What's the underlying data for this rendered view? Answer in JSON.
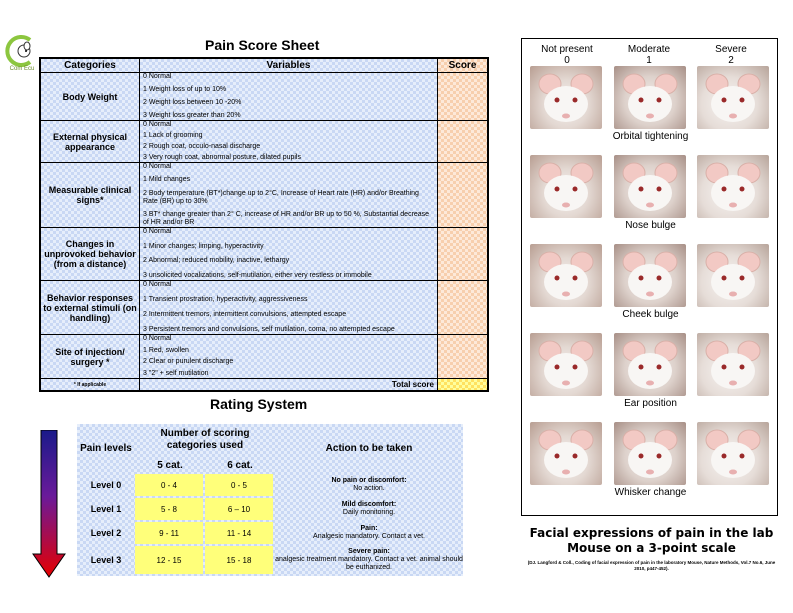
{
  "logo": {
    "text": "Com Ecu"
  },
  "pain_sheet": {
    "title": "Pain Score Sheet",
    "headers": {
      "categories": "Categories",
      "variables": "Variables",
      "score": "Score"
    },
    "rows": [
      {
        "category": "Body Weight",
        "variables": [
          "0   Normal",
          "1   Weight loss of up to 10%",
          "2   Weight loss between 10 -20%",
          "3   Weight loss greater than 20%"
        ]
      },
      {
        "category": "External physical appearance",
        "variables": [
          "0   Normal",
          "1   Lack of grooming",
          "2   Rough coat, occulo-nasal discharge",
          "3   Very rough coat, abnormal posture,  dilated pupils"
        ]
      },
      {
        "category": "Measurable clinical signs*",
        "variables": [
          "0   Normal",
          "1   Mild changes",
          "2    Body temperature (BT*)change up to  2°C, Increase of Heart rate (HR) and/or Breathing Rate (BR) up to 30%",
          "3   BT* change greater than 2° C, increase of HR and/or BR up to  50 %, Substantial decrease of  HR and/or BR"
        ]
      },
      {
        "category": "Changes in unprovoked behavior (from a distance)",
        "variables": [
          "0   Normal",
          "1   Minor changes; limping, hyperactivity",
          "2   Abnormal; reduced mobility, inactive, lethargy",
          "3  unsolicited vocalizations, self-mutilation, either very restless or immobile"
        ]
      },
      {
        "category": "Behavior responses to external stimuli (on handling)",
        "variables": [
          "0   Normal",
          "1   Transient prostration, hyperactivity, aggressiveness",
          "2   Intermittent tremors, intermittent convulsions, attempted escape",
          "3   Persistent tremors and convulsions, self mutilation, coma, no attempted escape"
        ]
      },
      {
        "category": "Site of injection/ surgery *",
        "variables": [
          "0   Normal",
          "1   Red, swollen",
          "2   Clear or purulent discharge",
          "3   \"2\" + self mutilation"
        ]
      }
    ],
    "footnote": "* If applicable",
    "total_label": "Total score"
  },
  "rating": {
    "title": "Rating System",
    "headers": {
      "pain_levels": "Pain levels",
      "num_categories": "Number of scoring categories used",
      "cat5": "5 cat.",
      "cat6": "6 cat.",
      "action": "Action to be taken"
    },
    "rows": [
      {
        "level": "Level 0",
        "cat5": "0 - 4",
        "cat6": "0 - 5",
        "action_title": "No pain or discomfort:",
        "action_text": "No action."
      },
      {
        "level": "Level 1",
        "cat5": "5 - 8",
        "cat6": "6 – 10",
        "action_title": "Mild discomfort:",
        "action_text": "Daily monitoring."
      },
      {
        "level": "Level 2",
        "cat5": "9 - 11",
        "cat6": "11 - 14",
        "action_title": "Pain:",
        "action_text": "Analgesic mandatory. Contact a vet."
      },
      {
        "level": "Level 3",
        "cat5": "12 - 15",
        "cat6": "15 - 18",
        "action_title": "Severe pain:",
        "action_text": "analgesic treatment mandatory. Contact a vet. animal should be euthanized."
      }
    ],
    "arrow_colors": [
      "#1a1a8a",
      "#6a1a9a",
      "#e60000"
    ]
  },
  "mouse_scale": {
    "columns": [
      {
        "label": "Not present",
        "score": "0"
      },
      {
        "label": "Moderate",
        "score": "1"
      },
      {
        "label": "Severe",
        "score": "2"
      }
    ],
    "features": [
      "Orbital tightening",
      "Nose bulge",
      "Cheek bulge",
      "Ear position",
      "Whisker change"
    ],
    "caption": "Facial expressions of pain in the lab Mouse on a 3-point scale",
    "citation": "(DJ. Langford & Coll., Coding of facial expression of pain in the laboratory Mouse, Nature Methods, Vol.7 No.6, June 2010, p447-452)."
  }
}
